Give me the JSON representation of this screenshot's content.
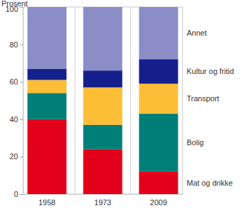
{
  "chart_data": {
    "type": "bar",
    "stacked": true,
    "ylabel": "Prosent",
    "categories": [
      "1958",
      "1973",
      "2009"
    ],
    "series": [
      {
        "name": "Mat og drikke",
        "color": "#e3001b",
        "values": [
          40,
          24,
          12
        ]
      },
      {
        "name": "Bolig",
        "color": "#007f79",
        "values": [
          14,
          13,
          31
        ]
      },
      {
        "name": "Transport",
        "color": "#fcbe36",
        "values": [
          7,
          20,
          16
        ]
      },
      {
        "name": "Kultur og fritid",
        "color": "#15208c",
        "values": [
          6,
          9,
          13
        ]
      },
      {
        "name": "Annet",
        "color": "#8b8dc6",
        "values": [
          33,
          34,
          28
        ]
      }
    ],
    "ylim": [
      0,
      100
    ],
    "yticks": [
      0,
      20,
      40,
      60,
      80,
      100
    ],
    "grid": false,
    "legend": "right"
  }
}
